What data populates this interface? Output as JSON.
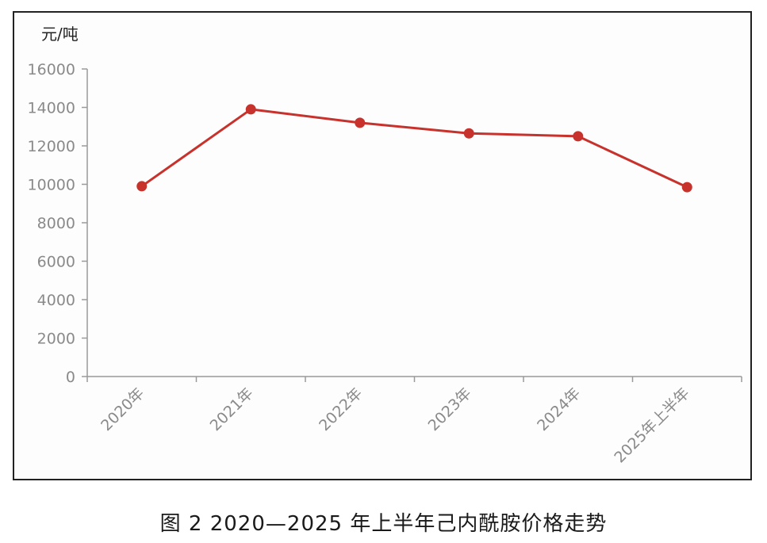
{
  "chart_data": {
    "type": "line",
    "title": "",
    "ylabel": "元/吨",
    "xlabel": "",
    "categories": [
      "2020年",
      "2021年",
      "2022年",
      "2023年",
      "2024年",
      "2025年上半年"
    ],
    "series": [
      {
        "values": [
          9900,
          13900,
          13200,
          12650,
          12500,
          9850
        ]
      }
    ],
    "ylim": [
      0,
      16000
    ],
    "yticks": [
      "0",
      "2000",
      "4000",
      "6000",
      "8000",
      "10000",
      "12000",
      "14000",
      "16000"
    ],
    "grid": false,
    "line_color": "#c8322d"
  },
  "caption": "图 2  2020—2025 年上半年己内酰胺价格走势"
}
